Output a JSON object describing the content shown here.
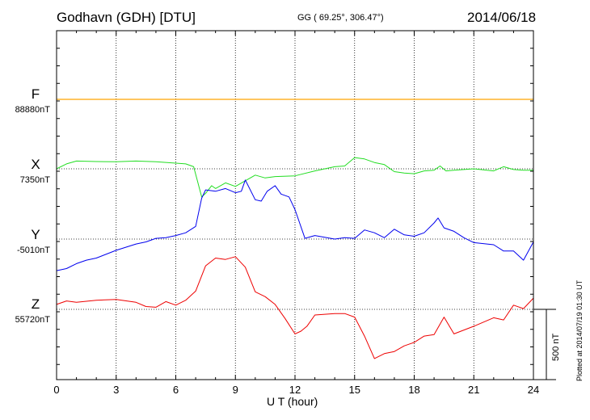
{
  "header": {
    "station": "Godhavn (GDH)  [DTU]",
    "coords": "GG ( 69.25°, 306.47°)",
    "date": "2014/06/18"
  },
  "footer": {
    "plotted": "Plotted at 2014/07/19 01:30 UT"
  },
  "chart_data": {
    "type": "line",
    "title": "Godhavn (GDH)  [DTU]",
    "xlabel": "U T (hour)",
    "ylabel": "",
    "xlim": [
      0,
      24
    ],
    "x_ticks": [
      "0",
      "3",
      "6",
      "9",
      "12",
      "15",
      "18",
      "21",
      "24"
    ],
    "scale_bar": "500 nT",
    "colors": {
      "F": "#ffa500",
      "X": "#22dd22",
      "Y": "#0000ee",
      "Z": "#ee0000"
    },
    "series": [
      {
        "name": "F",
        "baseline": "88880nT",
        "x": [
          0,
          24
        ],
        "values": [
          0,
          0
        ]
      },
      {
        "name": "X",
        "baseline": "7350nT",
        "x": [
          0,
          0.5,
          1,
          2,
          3,
          4,
          5,
          6,
          6.5,
          6.9,
          7.1,
          7.3,
          7.5,
          7.8,
          8,
          8.5,
          9,
          9.5,
          10,
          10.5,
          11,
          12,
          13,
          14,
          14.5,
          15,
          15.5,
          16,
          16.5,
          17,
          17.5,
          18,
          18.5,
          19,
          19.3,
          19.6,
          20,
          21,
          22,
          22.5,
          23,
          23.5,
          24
        ],
        "values": [
          0,
          35,
          55,
          52,
          50,
          55,
          50,
          40,
          35,
          15,
          -90,
          -200,
          -175,
          -120,
          -140,
          -100,
          -125,
          -85,
          -45,
          -65,
          -55,
          -50,
          -15,
          15,
          20,
          80,
          70,
          45,
          30,
          -20,
          -30,
          -35,
          -15,
          -10,
          20,
          -15,
          -10,
          0,
          -15,
          15,
          -5,
          -10,
          -10
        ]
      },
      {
        "name": "Y",
        "baseline": "-5010nT",
        "x": [
          0,
          0.5,
          1,
          1.5,
          2,
          3,
          4,
          4.5,
          5,
          5.5,
          6,
          6.5,
          7,
          7.3,
          7.5,
          8,
          8.5,
          9,
          9.3,
          9.5,
          10,
          10.3,
          10.6,
          11,
          11.3,
          11.7,
          12,
          12.5,
          13,
          14,
          14.5,
          15,
          15.5,
          16,
          16.5,
          17,
          17.5,
          18,
          18.5,
          19,
          19.2,
          19.5,
          20,
          20.5,
          21,
          22,
          22.5,
          23,
          23.5,
          24
        ],
        "values": [
          -225,
          -210,
          -175,
          -150,
          -135,
          -80,
          -35,
          -20,
          5,
          10,
          25,
          45,
          90,
          290,
          350,
          340,
          360,
          330,
          340,
          420,
          280,
          270,
          340,
          380,
          320,
          300,
          210,
          5,
          25,
          0,
          10,
          5,
          65,
          45,
          10,
          70,
          30,
          20,
          45,
          115,
          150,
          80,
          55,
          10,
          -25,
          -40,
          -85,
          -85,
          -150,
          -20
        ]
      },
      {
        "name": "Z",
        "baseline": "55720nT",
        "x": [
          0,
          0.5,
          1,
          2,
          3,
          4,
          4.5,
          5,
          5.5,
          6,
          6.5,
          7,
          7.5,
          8,
          8.5,
          9,
          9.5,
          10,
          10.5,
          11,
          11.5,
          12,
          12.3,
          12.6,
          13,
          14,
          14.5,
          15,
          15.5,
          16,
          16.5,
          17,
          17.5,
          18,
          18.5,
          19,
          19.5,
          20,
          21,
          22,
          22.5,
          23,
          23.5,
          24
        ],
        "values": [
          35,
          60,
          50,
          65,
          70,
          50,
          20,
          15,
          55,
          30,
          65,
          130,
          310,
          365,
          355,
          375,
          300,
          125,
          90,
          35,
          -65,
          -175,
          -155,
          -120,
          -40,
          -30,
          -30,
          -55,
          -190,
          -350,
          -315,
          -300,
          -260,
          -235,
          -190,
          -180,
          -55,
          -175,
          -120,
          -60,
          -75,
          30,
          5,
          80
        ]
      }
    ]
  }
}
